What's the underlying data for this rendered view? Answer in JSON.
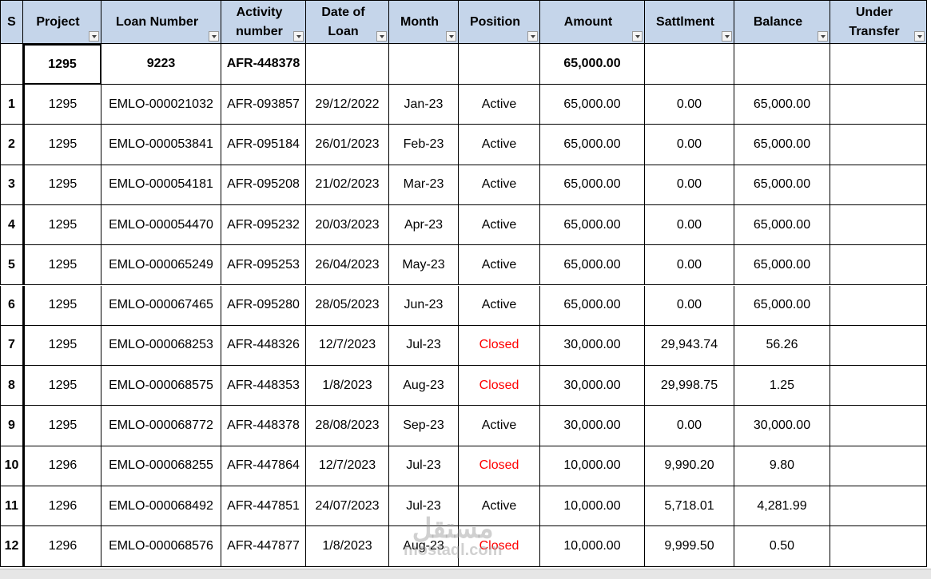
{
  "table": {
    "headers": [
      "S",
      "Project",
      "Loan Number",
      "Activity number",
      "Date of Loan",
      "Month",
      "Position",
      "Amount",
      "Sattlment",
      "Balance",
      "Under Transfer"
    ],
    "summary": [
      "",
      "1295",
      "9223",
      "AFR-448378",
      "",
      "",
      "",
      "65,000.00",
      "",
      "",
      ""
    ],
    "rows": [
      [
        "1",
        "1295",
        "EMLO-000021032",
        "AFR-093857",
        "29/12/2022",
        "Jan-23",
        "Active",
        "65,000.00",
        "0.00",
        "65,000.00",
        ""
      ],
      [
        "2",
        "1295",
        "EMLO-000053841",
        "AFR-095184",
        "26/01/2023",
        "Feb-23",
        "Active",
        "65,000.00",
        "0.00",
        "65,000.00",
        ""
      ],
      [
        "3",
        "1295",
        "EMLO-000054181",
        "AFR-095208",
        "21/02/2023",
        "Mar-23",
        "Active",
        "65,000.00",
        "0.00",
        "65,000.00",
        ""
      ],
      [
        "4",
        "1295",
        "EMLO-000054470",
        "AFR-095232",
        "20/03/2023",
        "Apr-23",
        "Active",
        "65,000.00",
        "0.00",
        "65,000.00",
        ""
      ],
      [
        "5",
        "1295",
        "EMLO-000065249",
        "AFR-095253",
        "26/04/2023",
        "May-23",
        "Active",
        "65,000.00",
        "0.00",
        "65,000.00",
        ""
      ],
      [
        "6",
        "1295",
        "EMLO-000067465",
        "AFR-095280",
        "28/05/2023",
        "Jun-23",
        "Active",
        "65,000.00",
        "0.00",
        "65,000.00",
        ""
      ],
      [
        "7",
        "1295",
        "EMLO-000068253",
        "AFR-448326",
        "12/7/2023",
        "Jul-23",
        "Closed",
        "30,000.00",
        "29,943.74",
        "56.26",
        ""
      ],
      [
        "8",
        "1295",
        "EMLO-000068575",
        "AFR-448353",
        "1/8/2023",
        "Aug-23",
        "Closed",
        "30,000.00",
        "29,998.75",
        "1.25",
        ""
      ],
      [
        "9",
        "1295",
        "EMLO-000068772",
        "AFR-448378",
        "28/08/2023",
        "Sep-23",
        "Active",
        "30,000.00",
        "0.00",
        "30,000.00",
        ""
      ],
      [
        "10",
        "1296",
        "EMLO-000068255",
        "AFR-447864",
        "12/7/2023",
        "Jul-23",
        "Closed",
        "10,000.00",
        "9,990.20",
        "9.80",
        ""
      ],
      [
        "11",
        "1296",
        "EMLO-000068492",
        "AFR-447851",
        "24/07/2023",
        "Jul-23",
        "Active",
        "10,000.00",
        "5,718.01",
        "4,281.99",
        ""
      ],
      [
        "12",
        "1296",
        "EMLO-000068576",
        "AFR-447877",
        "1/8/2023",
        "Aug-23",
        "Closed",
        "10,000.00",
        "9,999.50",
        "0.50",
        ""
      ]
    ],
    "position_colors": [
      "#000000",
      "#000000",
      "#000000",
      "#000000",
      "#000000",
      "#000000",
      "#ff0000",
      "#ff0000",
      "#000000",
      "#ff0000",
      "#000000",
      "#ff0000"
    ],
    "header_color": "#c5d5ea"
  },
  "watermark": [
    "مستقل",
    "mostaql.com"
  ]
}
